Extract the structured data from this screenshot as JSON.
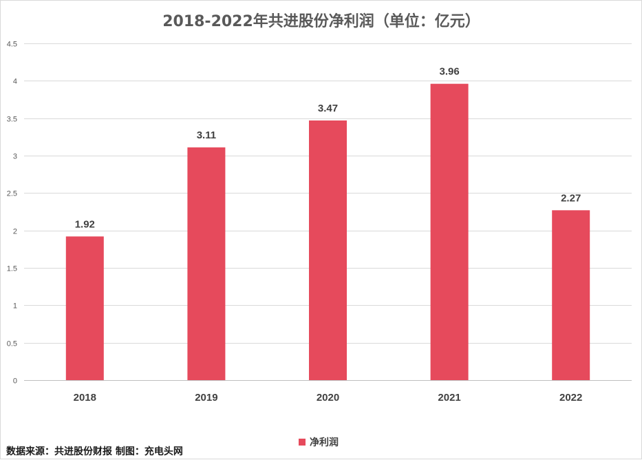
{
  "chart_data": {
    "type": "bar",
    "title": "2018-2022年共进股份净利润（单位：亿元）",
    "categories": [
      "2018",
      "2019",
      "2020",
      "2021",
      "2022"
    ],
    "series": [
      {
        "name": "净利润",
        "values": [
          1.92,
          3.11,
          3.47,
          3.96,
          2.27
        ],
        "color": "#e64a5c"
      }
    ],
    "data_labels": [
      "1.92",
      "3.11",
      "3.47",
      "3.96",
      "2.27"
    ],
    "ylim": [
      0,
      4.5
    ],
    "yticks": [
      0,
      0.5,
      1,
      1.5,
      2,
      2.5,
      3,
      3.5,
      4,
      4.5
    ],
    "ytick_labels": [
      "0",
      "0.5",
      "1",
      "1.5",
      "2",
      "2.5",
      "3",
      "3.5",
      "4",
      "4.5"
    ],
    "xlabel": "",
    "ylabel": "",
    "grid": true,
    "legend": {
      "position": "bottom",
      "entries": [
        "净利润"
      ]
    }
  },
  "source_note": "数据来源：共进股份财报  制图：充电头网"
}
